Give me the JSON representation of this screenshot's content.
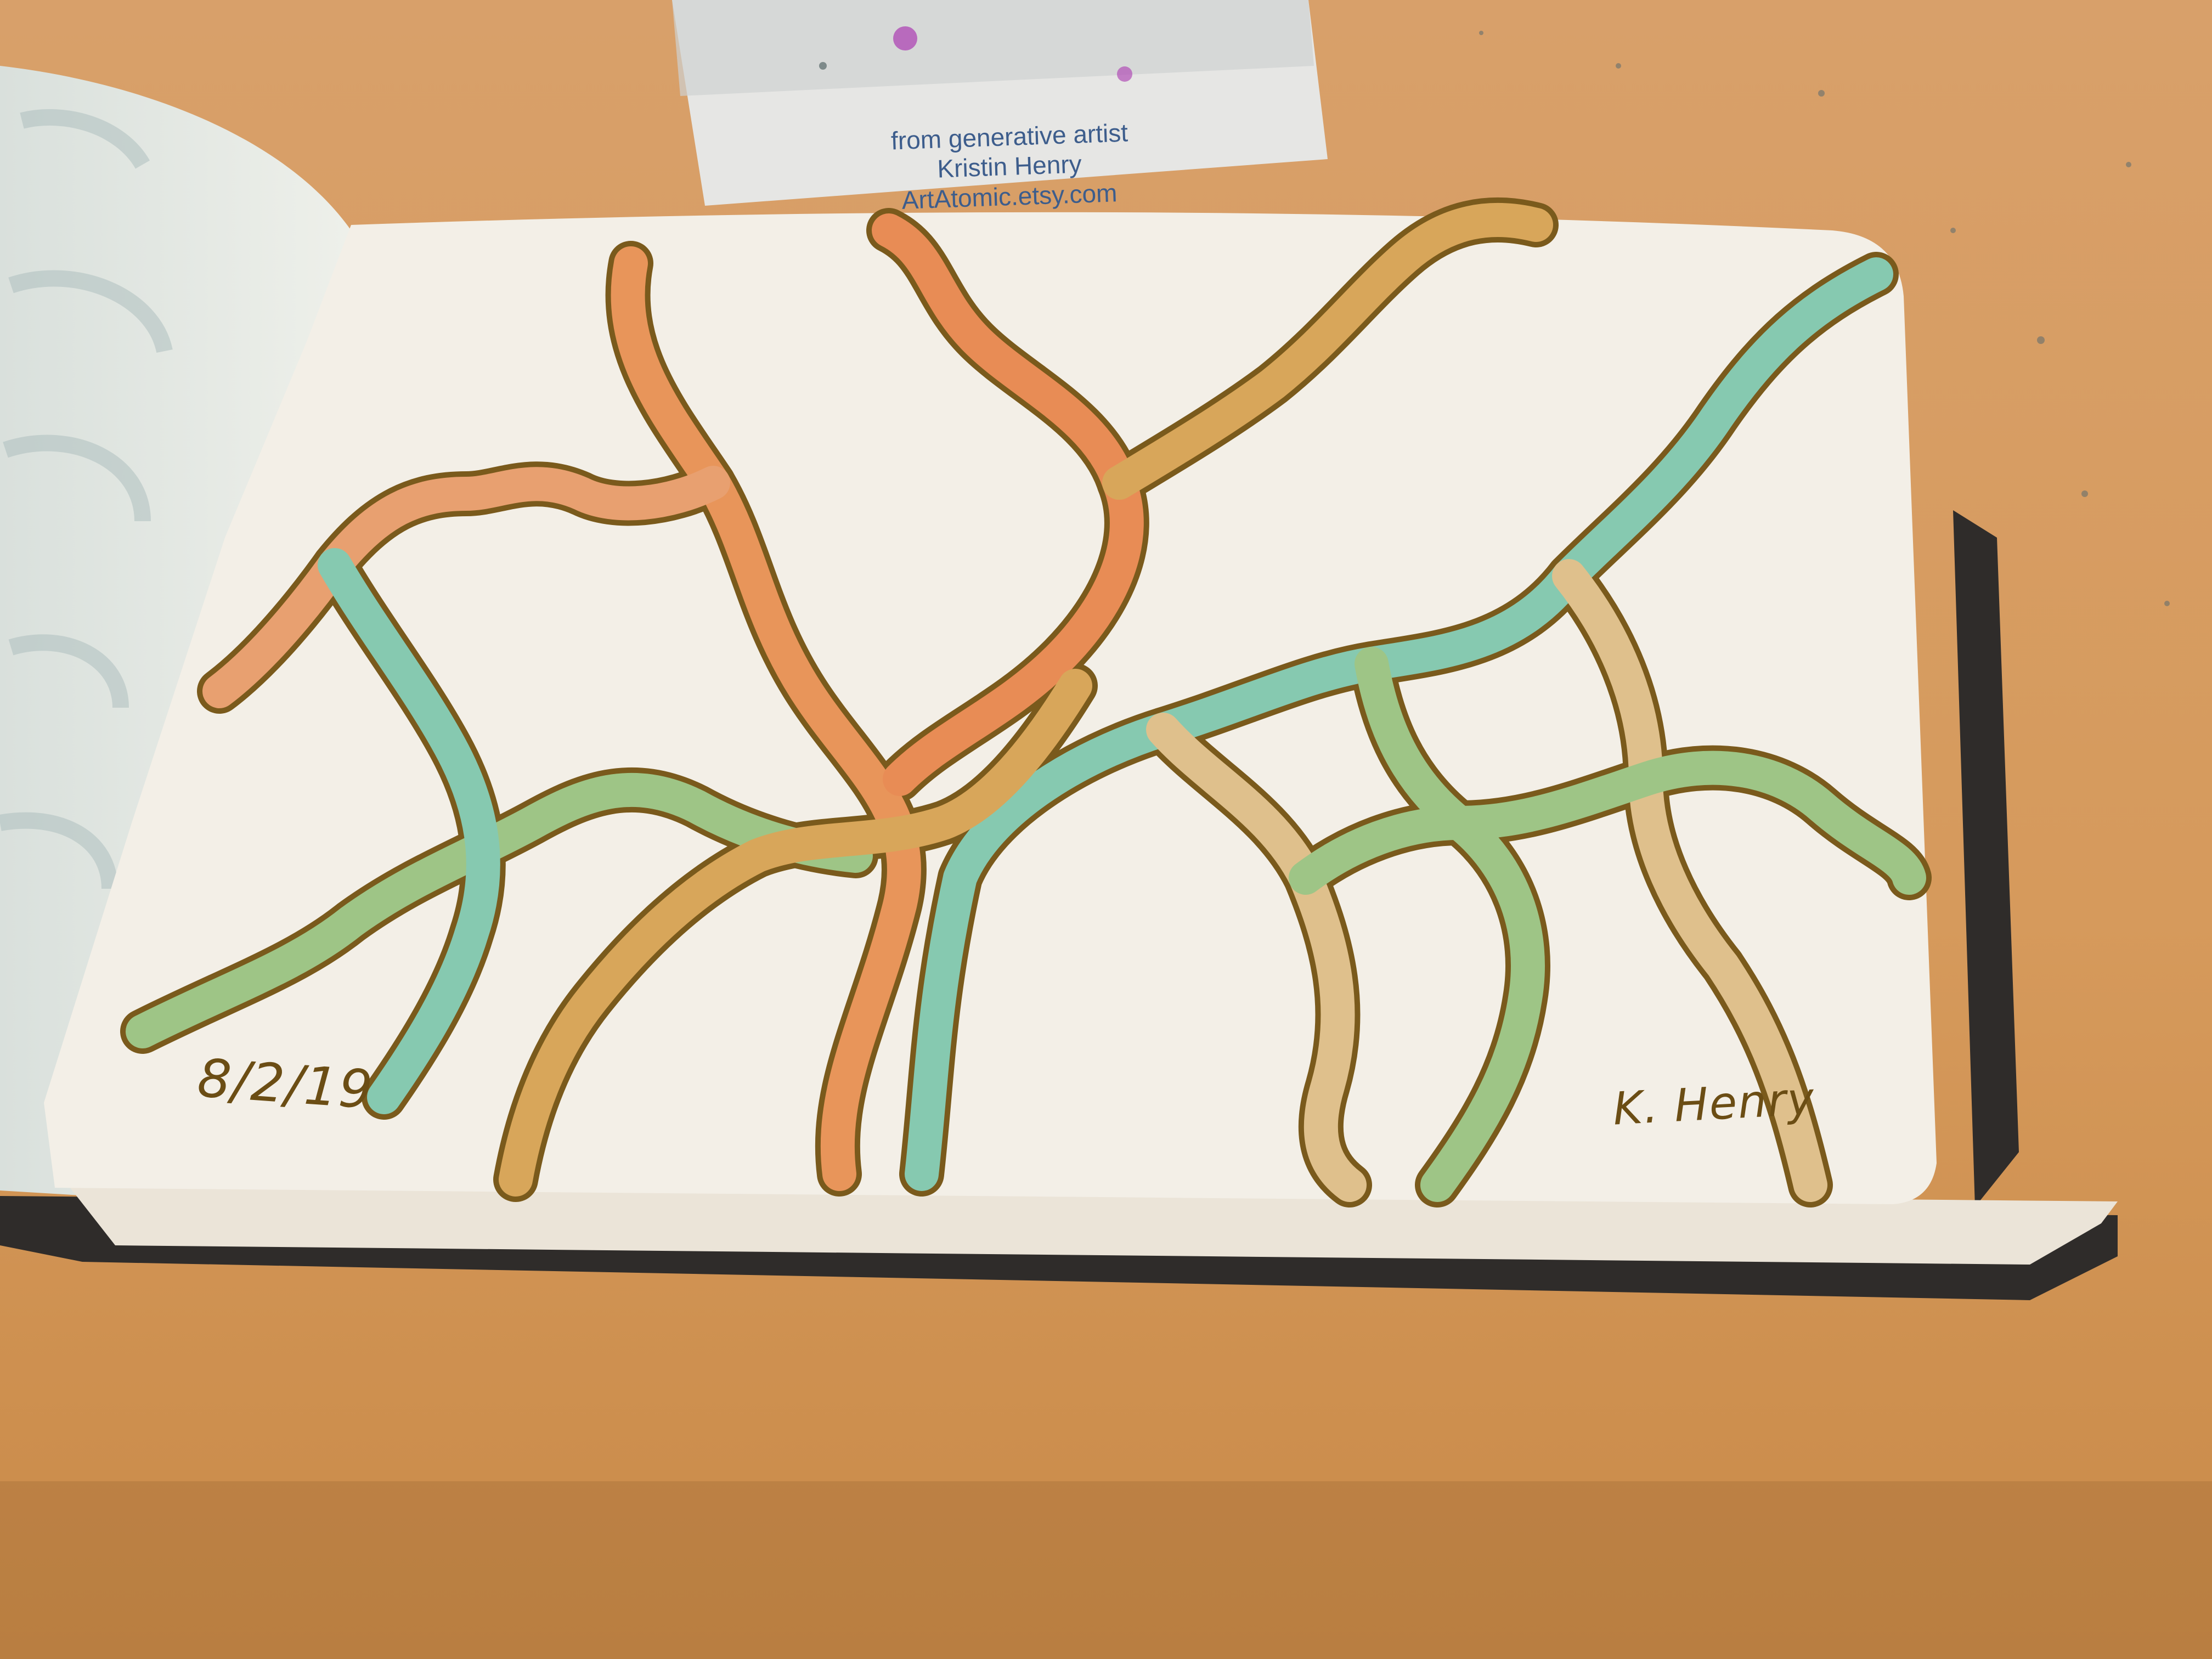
{
  "business_card": {
    "line1": "from generative artist",
    "line2": "Kristin Henry",
    "line3": "ArtAtomic.etsy.com"
  },
  "artwork": {
    "date": "8/2/19",
    "signature": "K. Henry",
    "colors": {
      "table": "#d9a066",
      "paper": "#f3efe7",
      "outline": "#7a5a1c",
      "orange": "#e8955a",
      "teal": "#86c9b0",
      "ochre": "#d8a65a",
      "tan": "#dfc08c",
      "green": "#9ec586"
    }
  }
}
